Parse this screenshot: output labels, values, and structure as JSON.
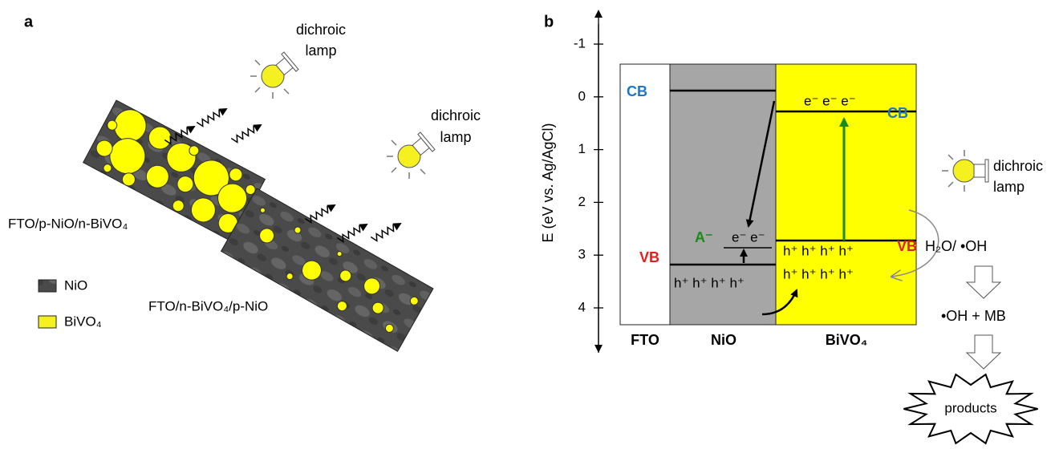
{
  "panel_a": {
    "label": "a",
    "lamp_top": [
      "dichroic",
      "lamp"
    ],
    "lamp_middle": [
      "dichroic",
      "lamp"
    ],
    "sample_1": "FTO/p-NiO/n-BiVO₄",
    "sample_2": "FTO/n-BiVO₄/p-NiO",
    "legend": [
      "NiO",
      "BiVO₄"
    ]
  },
  "panel_b": {
    "label": "b",
    "y_axis_label": "E (eV vs. Ag/AgCl)",
    "y_ticks": [
      "-1",
      "0",
      "1",
      "2",
      "3",
      "4"
    ],
    "layers": [
      "FTO",
      "NiO",
      "BiVO₄"
    ],
    "nio_cb": "CB",
    "nio_vb": "VB",
    "bivo4_cb": "CB",
    "bivo4_vb": "VB",
    "acceptor": "A⁻",
    "nio_electrons": "e⁻ e⁻",
    "bivo4_electrons": "e⁻  e⁻  e⁻",
    "nio_holes": "h⁺  h⁺  h⁺  h⁺",
    "bivo4_holes_top": "h⁺  h⁺  h⁺  h⁺",
    "bivo4_holes_bottom": "h⁺  h⁺  h⁺  h⁺",
    "lamp": [
      "dichroic",
      "lamp"
    ],
    "reaction_1": "H₂O/ •OH",
    "reaction_2": "•OH + MB",
    "products": "products"
  }
}
